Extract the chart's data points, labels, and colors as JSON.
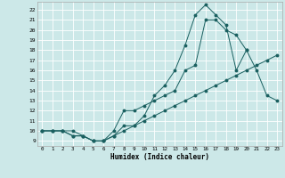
{
  "xlabel": "Humidex (Indice chaleur)",
  "xlim": [
    -0.5,
    23.5
  ],
  "ylim": [
    8.5,
    22.8
  ],
  "xticks": [
    0,
    1,
    2,
    3,
    4,
    5,
    6,
    7,
    8,
    9,
    10,
    11,
    12,
    13,
    14,
    15,
    16,
    17,
    18,
    19,
    20,
    21,
    22,
    23
  ],
  "yticks": [
    9,
    10,
    11,
    12,
    13,
    14,
    15,
    16,
    17,
    18,
    19,
    20,
    21,
    22
  ],
  "bg_color": "#cce8e8",
  "line_color": "#1a6060",
  "grid_color": "#ffffff",
  "line1_x": [
    0,
    1,
    2,
    3,
    4,
    5,
    6,
    7,
    8,
    9,
    10,
    11,
    12,
    13,
    14,
    15,
    16,
    17,
    18,
    19,
    20,
    21,
    22,
    23
  ],
  "line1_y": [
    10,
    10,
    10,
    9.5,
    9.5,
    9,
    9,
    9.5,
    10,
    10.5,
    11,
    11.5,
    12,
    12.5,
    13,
    13.5,
    14,
    14.5,
    15,
    15.5,
    16,
    16.5,
    17,
    17.5
  ],
  "line2_x": [
    0,
    1,
    2,
    3,
    4,
    5,
    6,
    7,
    8,
    9,
    10,
    11,
    12,
    13,
    14,
    15,
    16,
    17,
    18,
    19,
    20,
    21,
    22,
    23
  ],
  "line2_y": [
    10,
    10,
    10,
    10,
    9.5,
    9,
    9,
    10,
    12,
    12,
    12.5,
    13,
    13.5,
    14,
    16,
    16.5,
    21,
    21,
    20,
    19.5,
    18,
    16,
    13.5,
    13
  ],
  "line3_x": [
    0,
    1,
    2,
    3,
    4,
    5,
    6,
    7,
    8,
    9,
    10,
    11,
    12,
    13,
    14,
    15,
    16,
    17,
    18,
    19,
    20,
    21,
    22,
    23
  ],
  "line3_y": [
    10,
    10,
    10,
    9.5,
    9.5,
    9,
    9,
    9.5,
    10.5,
    10.5,
    11.5,
    13.5,
    14.5,
    16,
    18.5,
    21.5,
    22.5,
    21.5,
    20.5,
    16,
    18,
    null,
    null,
    null
  ]
}
